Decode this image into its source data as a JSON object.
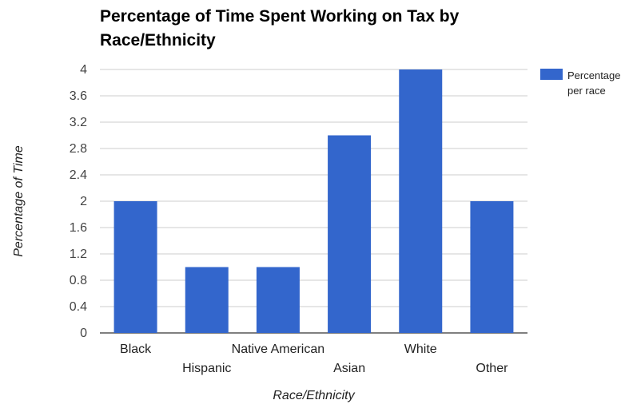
{
  "chart_data": {
    "type": "bar",
    "title": "Percentage of Time Spent Working on Tax by Race/Ethnicity",
    "xlabel": "Race/Ethnicity",
    "ylabel": "Percentage of Time",
    "categories": [
      "Black",
      "Hispanic",
      "Native American",
      "Asian",
      "White",
      "Other"
    ],
    "series": [
      {
        "name": "Percentage per race",
        "values": [
          2,
          1,
          1,
          3,
          4,
          2
        ]
      }
    ],
    "ylim": [
      0,
      4
    ],
    "yticks": [
      "0",
      "0.4",
      "0.8",
      "1.2",
      "1.6",
      "2",
      "2.4",
      "2.8",
      "3.2",
      "3.6",
      "4"
    ],
    "grid": true,
    "legend_position": "right",
    "colors": {
      "bar": "#3366cc",
      "grid": "#cccccc",
      "axis": "#333333"
    }
  }
}
